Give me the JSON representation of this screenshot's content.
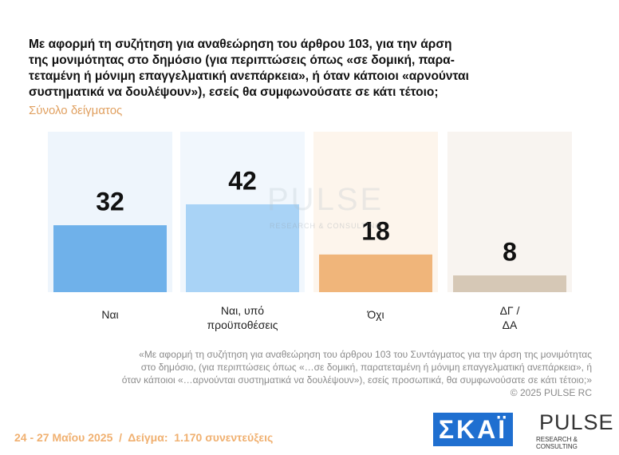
{
  "chart_data": {
    "type": "bar",
    "title": "Με αφορμή τη συζήτηση για αναθεώρηση του άρθρου 103, για την άρση\nτης μονιμότητας στο δημόσιο (για περιπτώσεις όπως «σε δομική, παρα-\nτεταμένη ή μόνιμη επαγγελματική ανεπάρκεια», ή όταν κάποιοι «αρνούνται\nσυστηματικά να δουλέψουν»), εσείς θα συμφωνούσατε σε κάτι τέτοιο;",
    "subtitle": "Σύνολο δείγματος",
    "categories": [
      "Ναι",
      "Ναι, υπό\nπροϋποθέσεις",
      "Όχι",
      "ΔΓ /\nΔΑ"
    ],
    "values": [
      32,
      42,
      18,
      8
    ],
    "colors": [
      "#6fb1ea",
      "#a9d3f6",
      "#f0b57a",
      "#d6c8b6"
    ],
    "panel_colors": [
      "#eef5fc",
      "#f1f7fd",
      "#fdf5ec",
      "#f8f4f0"
    ],
    "footnote": "«Με αφορμή τη συζήτηση για αναθεώρηση του άρθρου 103 του Συντάγματος για την άρση της μονιμότητας\nστο δημόσιο, (για περιπτώσεις όπως «…σε δομική, παρατεταμένη ή μόνιμη επαγγελματική ανεπάρκεια», ή\nόταν κάποιοι «…αρνούνται συστηματικά να δουλέψουν»), εσείς προσωπικά, θα συμφωνούσατε σε κάτι τέτοιο;»\n©  2025  PULSE RC",
    "footer": "24 - 27 Μαΐου 2025  /  Δείγμα:  1.170 συνεντεύξεις",
    "logo_skai": "ΣΚΑΪ",
    "logo_pulse": "PULSE",
    "logo_pulse_sub": "RESEARCH & CONSULTING"
  }
}
